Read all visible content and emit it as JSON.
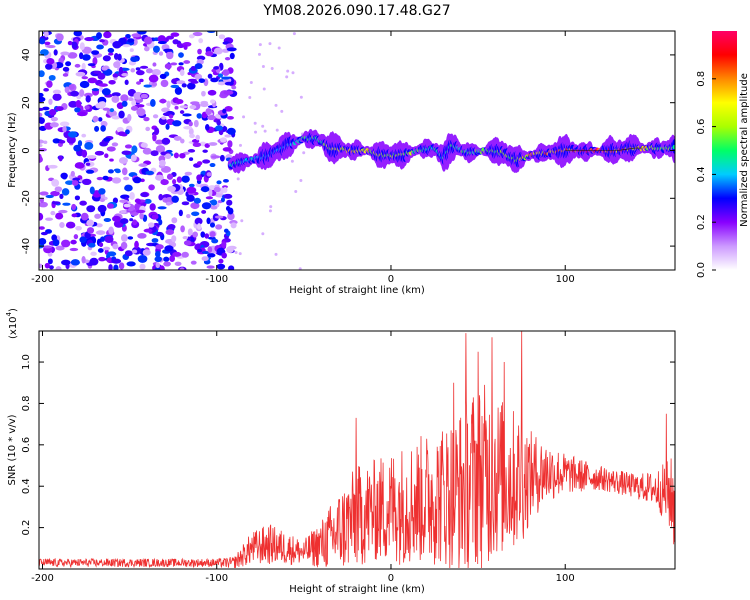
{
  "figure_title": "YM08.2026.090.17.48.G27",
  "chart_data": [
    {
      "type": "heatmap",
      "title": "YM08.2026.090.17.48.G27",
      "xlabel": "Height of straight line (km)",
      "ylabel": "Frequency (Hz)",
      "xlim": [
        -202,
        163
      ],
      "ylim": [
        -50,
        50
      ],
      "x_ticks": [
        -200,
        -100,
        0,
        100
      ],
      "y_ticks": [
        -40,
        -20,
        0,
        20,
        40
      ],
      "colorbar": {
        "label": "Normalized spectral amplitude",
        "range": [
          0,
          1
        ],
        "ticks": [
          0.0,
          0.2,
          0.4,
          0.6,
          0.8
        ],
        "tick_labels": [
          "0.0",
          "0.2",
          "0.4",
          "0.6",
          "0.8"
        ],
        "colors": [
          "#ffffff",
          "#cc99ff",
          "#8800ff",
          "#0000ff",
          "#00ccff",
          "#00ff66",
          "#aaff00",
          "#ffff00",
          "#ff8800",
          "#ff0000",
          "#ff0066"
        ]
      },
      "noise_region_x": [
        -202,
        -90
      ],
      "noise_amplitude": [
        0.05,
        0.35
      ],
      "ridge": {
        "x": [
          -92,
          -80,
          -70,
          -60,
          -50,
          -42,
          -35,
          -25,
          -15,
          -5,
          5,
          15,
          25,
          30,
          35,
          45,
          55,
          65,
          72,
          80,
          90,
          100,
          110,
          120,
          130,
          140,
          150,
          160
        ],
        "freq": [
          -6,
          -4,
          -2,
          2,
          5,
          5,
          1,
          0,
          0,
          -2,
          -2,
          0,
          1,
          -3,
          2,
          -1,
          0,
          -1,
          -4,
          -2,
          -1,
          0,
          0,
          0,
          0,
          1,
          1,
          1
        ],
        "amplitude": [
          0.5,
          0.45,
          0.4,
          0.4,
          0.5,
          0.55,
          0.65,
          0.75,
          0.75,
          0.7,
          0.65,
          0.6,
          0.5,
          0.45,
          0.5,
          0.55,
          0.6,
          0.6,
          0.7,
          0.8,
          0.85,
          0.9,
          1.0,
          1.0,
          0.9,
          0.8,
          0.7,
          0.6
        ]
      }
    },
    {
      "type": "line",
      "xlabel": "Height of straight line (km)",
      "ylabel": "SNR (10 * v/v)",
      "y_multiplier": "(x10",
      "y_multiplier_exp": "4",
      "y_multiplier_close": ")",
      "xlim": [
        -202,
        163
      ],
      "ylim": [
        0,
        1.15
      ],
      "x_ticks": [
        -200,
        -100,
        0,
        100
      ],
      "y_ticks": [
        0.2,
        0.4,
        0.6,
        0.8,
        1.0
      ],
      "y_tick_labels": [
        "0.2",
        "0.4",
        "0.6",
        "0.8",
        "1.0"
      ],
      "series": [
        {
          "name": "SNR",
          "color": "#ee3030",
          "envelope_x": [
            -202,
            -100,
            -90,
            -80,
            -70,
            -60,
            -50,
            -40,
            -30,
            -20,
            -10,
            0,
            10,
            20,
            30,
            40,
            45,
            50,
            55,
            60,
            65,
            70,
            75,
            80,
            90,
            100,
            110,
            120,
            130,
            140,
            150,
            155,
            160,
            163
          ],
          "envelope_mean": [
            0.03,
            0.03,
            0.03,
            0.1,
            0.12,
            0.1,
            0.08,
            0.12,
            0.18,
            0.25,
            0.28,
            0.3,
            0.32,
            0.34,
            0.36,
            0.38,
            0.42,
            0.45,
            0.45,
            0.45,
            0.44,
            0.43,
            0.43,
            0.45,
            0.47,
            0.46,
            0.45,
            0.44,
            0.42,
            0.4,
            0.39,
            0.38,
            0.36,
            0.3
          ],
          "envelope_spread": [
            0.02,
            0.02,
            0.03,
            0.08,
            0.1,
            0.08,
            0.06,
            0.12,
            0.2,
            0.25,
            0.25,
            0.28,
            0.3,
            0.32,
            0.35,
            0.4,
            0.45,
            0.45,
            0.45,
            0.4,
            0.38,
            0.35,
            0.32,
            0.22,
            0.15,
            0.1,
            0.08,
            0.06,
            0.06,
            0.06,
            0.08,
            0.12,
            0.18,
            0.25
          ],
          "peaks": [
            {
              "x": 43,
              "y": 1.14
            },
            {
              "x": 58,
              "y": 1.12
            },
            {
              "x": 75,
              "y": 1.15
            },
            {
              "x": -20,
              "y": 0.73
            },
            {
              "x": 50,
              "y": 1.05
            },
            {
              "x": 36,
              "y": 0.9
            },
            {
              "x": 65,
              "y": 1.0
            },
            {
              "x": 158,
              "y": 0.75
            }
          ]
        }
      ]
    }
  ]
}
